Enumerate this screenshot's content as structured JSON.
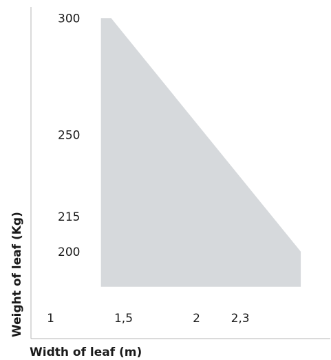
{
  "chart_data": {
    "type": "area",
    "xlabel": "Width of leaf (m)",
    "ylabel": "Weight of leaf (Kg)",
    "x_ticks": [
      {
        "value": 1,
        "label": "1"
      },
      {
        "value": 1.5,
        "label": "1,5"
      },
      {
        "value": 2,
        "label": "2"
      },
      {
        "value": 2.3,
        "label": "2,3"
      }
    ],
    "y_ticks": [
      {
        "value": 200,
        "label": "200"
      },
      {
        "value": 215,
        "label": "215"
      },
      {
        "value": 250,
        "label": "250"
      },
      {
        "value": 300,
        "label": "300"
      }
    ],
    "series": [
      {
        "x": [
          0.93,
          1.0,
          2.3,
          2.3,
          0.93
        ],
        "y": [
          300,
          300,
          200,
          185,
          185
        ]
      }
    ],
    "xlim": [
      0.75,
      2.5
    ],
    "ylim": [
      180,
      305
    ],
    "grid": false,
    "fill_color": "#d6d9dc",
    "axis_color": "#b5b5b5"
  }
}
